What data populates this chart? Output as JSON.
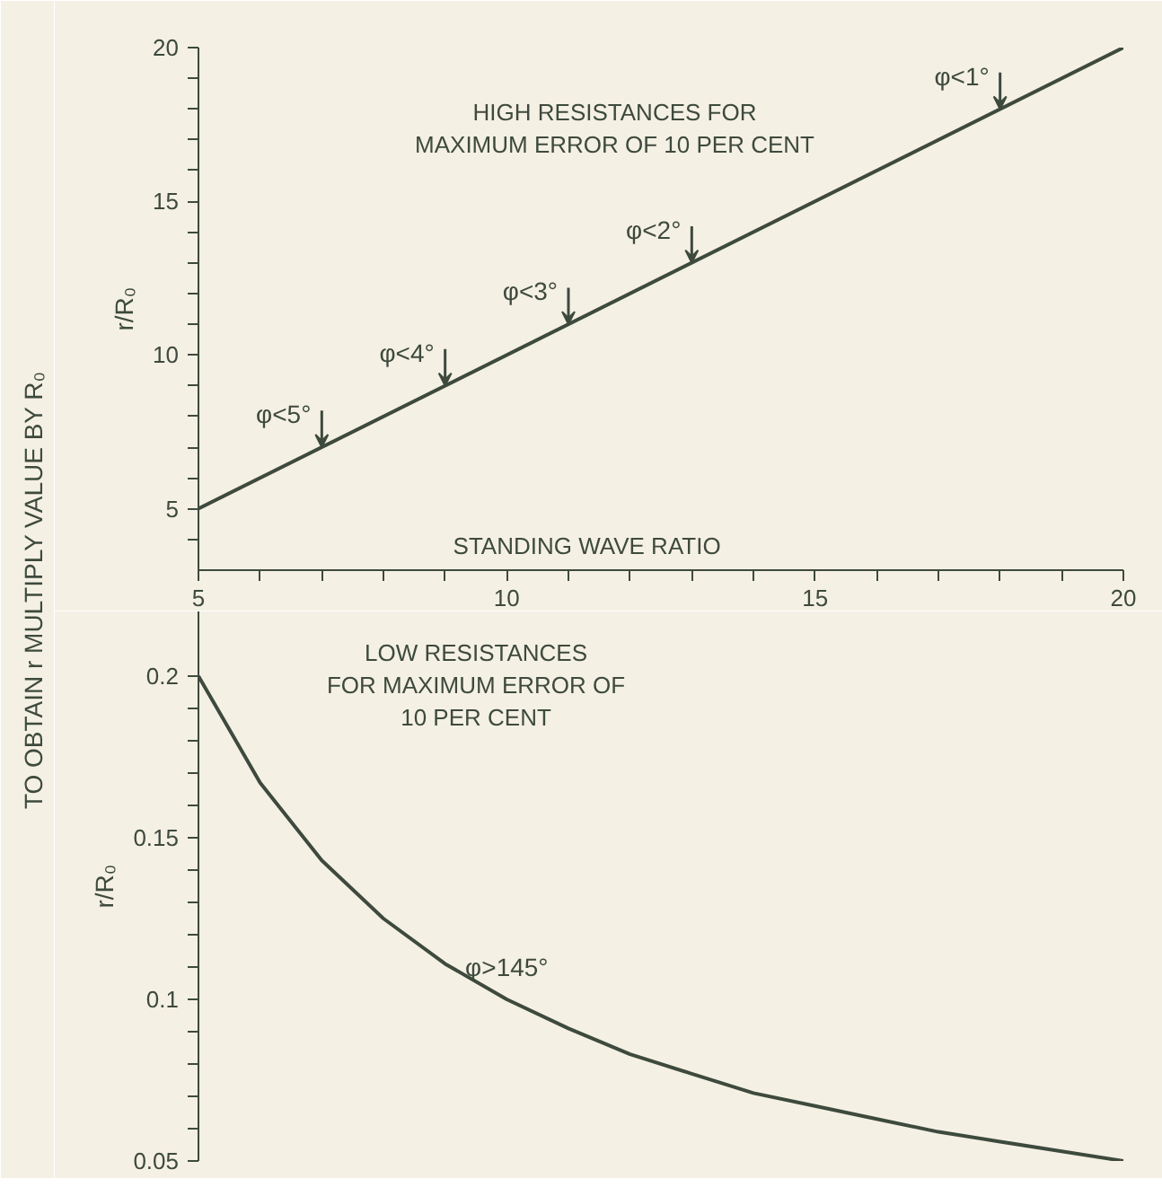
{
  "chart_data": [
    {
      "type": "line",
      "color": "#3d4a3d",
      "x": [
        5,
        20
      ],
      "values": [
        5,
        20
      ],
      "xlim": [
        5,
        20
      ],
      "ylim": [
        3,
        20
      ],
      "xticks": [
        5,
        {
          "value": 6,
          "label": null
        },
        {
          "value": 7,
          "label": null
        },
        {
          "value": 8,
          "label": null
        },
        {
          "value": 9,
          "label": null
        },
        10,
        {
          "value": 11,
          "label": null
        },
        {
          "value": 12,
          "label": null
        },
        {
          "value": 13,
          "label": null
        },
        {
          "value": 14,
          "label": null
        },
        15,
        {
          "value": 16,
          "label": null
        },
        {
          "value": 17,
          "label": null
        },
        {
          "value": 18,
          "label": null
        },
        {
          "value": 19,
          "label": null
        },
        20
      ],
      "yticks": [
        {
          "value": 4,
          "label": null
        },
        5,
        {
          "value": 6,
          "label": null
        },
        {
          "value": 7,
          "label": null
        },
        {
          "value": 8,
          "label": null
        },
        {
          "value": 9,
          "label": null
        },
        10,
        {
          "value": 11,
          "label": null
        },
        {
          "value": 12,
          "label": null
        },
        {
          "value": 13,
          "label": null
        },
        {
          "value": 14,
          "label": null
        },
        15,
        {
          "value": 16,
          "label": null
        },
        {
          "value": 17,
          "label": null
        },
        {
          "value": 18,
          "label": null
        },
        {
          "value": 19,
          "label": null
        },
        20
      ],
      "xlabel": "STANDING WAVE RATIO",
      "ylabel": "r/R₀",
      "annotations": [
        "TO OBTAIN r MULTIPLY VALUE BY R₀",
        "HIGH RESISTANCES FOR\nMAXIMUM ERROR OF 10 PER CENT",
        {
          "text": "φ<5°",
          "x": 7,
          "y": 7
        },
        {
          "text": "φ<4°",
          "x": 9,
          "y": 9
        },
        {
          "text": "φ<3°",
          "x": 11,
          "y": 11
        },
        {
          "text": "φ<2°",
          "x": 13,
          "y": 13
        },
        {
          "text": "φ<1°",
          "x": 18,
          "y": 18
        }
      ]
    },
    {
      "type": "line",
      "color": "#3d4a3d",
      "x": [
        5,
        6,
        7,
        8,
        9,
        10,
        11,
        12,
        13,
        14,
        15,
        16,
        17,
        18,
        19,
        20
      ],
      "values": [
        0.2,
        0.167,
        0.143,
        0.125,
        0.111,
        0.1,
        0.091,
        0.083,
        0.077,
        0.071,
        0.067,
        0.063,
        0.059,
        0.056,
        0.053,
        0.05
      ],
      "xlim": [
        5,
        20
      ],
      "ylim": [
        0.05,
        0.22
      ],
      "yticks": [
        0.05,
        {
          "value": 0.06,
          "label": null
        },
        {
          "value": 0.07,
          "label": null
        },
        {
          "value": 0.08,
          "label": null
        },
        {
          "value": 0.09,
          "label": null
        },
        0.1,
        {
          "value": 0.11,
          "label": null
        },
        {
          "value": 0.12,
          "label": null
        },
        {
          "value": 0.13,
          "label": null
        },
        {
          "value": 0.14,
          "label": null
        },
        0.15,
        {
          "value": 0.16,
          "label": null
        },
        {
          "value": 0.17,
          "label": null
        },
        {
          "value": 0.18,
          "label": null
        },
        {
          "value": 0.19,
          "label": null
        },
        0.2
      ],
      "ylabel": "r/R₀",
      "tick_labels": "y",
      "annotations": [
        "LOW RESISTANCES\nFOR MAXIMUM ERROR OF\n10 PER CENT",
        {
          "text": "φ>145°",
          "x": 10,
          "y": 0.1
        }
      ]
    }
  ]
}
